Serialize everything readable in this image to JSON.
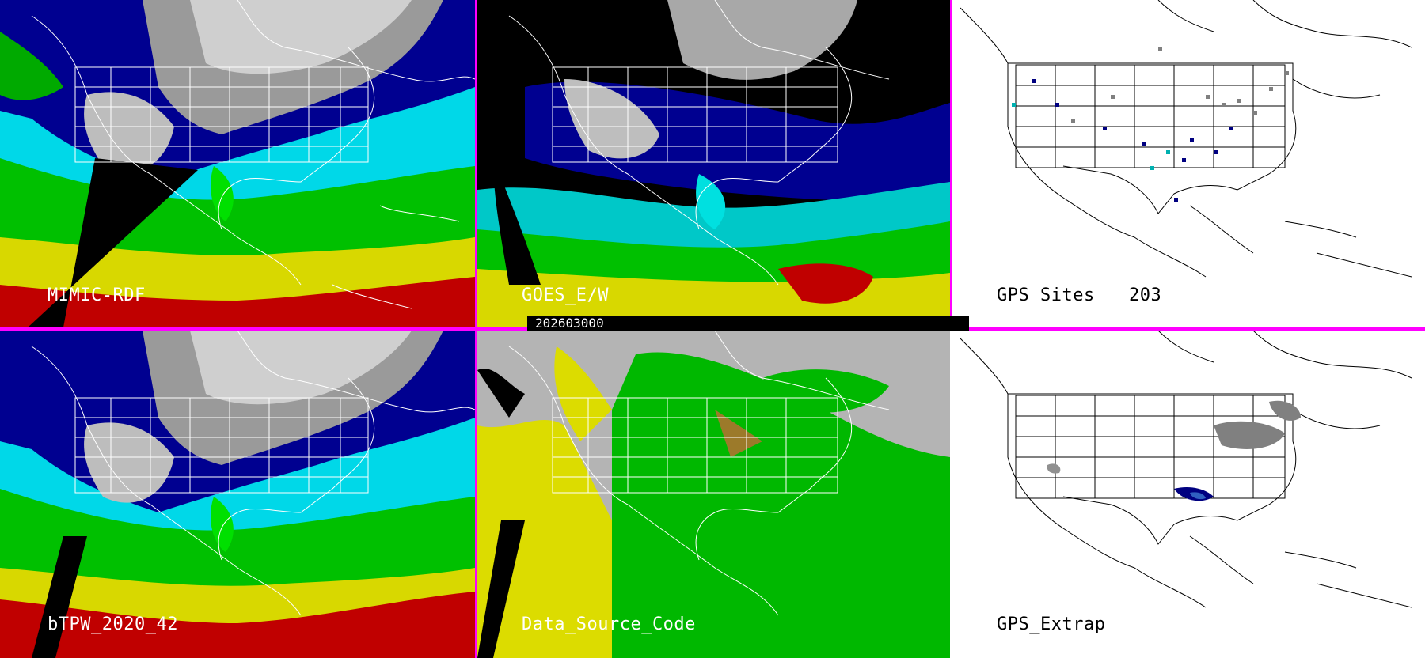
{
  "panels": {
    "p1": {
      "label": "MIMIC-RDF"
    },
    "p2": {
      "label": "GOES_E/W"
    },
    "p3": {
      "label": "GPS Sites",
      "count": "203"
    },
    "p4": {
      "label": "bTPW_2020_42"
    },
    "p5": {
      "label": "Data_Source_Code"
    },
    "p6": {
      "label": "GPS_Extrap"
    }
  },
  "timestamp": "202603000",
  "colors": {
    "divider": "#ff00ff",
    "moisture_low": "#000080",
    "moisture_mid": "#00e0e0",
    "moisture_green": "#00cc00",
    "moisture_yellow": "#e0e000",
    "moisture_high": "#cc0000",
    "source_goes": "#e0e000",
    "source_gps": "#00bb00",
    "source_none": "#b0b0b0"
  }
}
